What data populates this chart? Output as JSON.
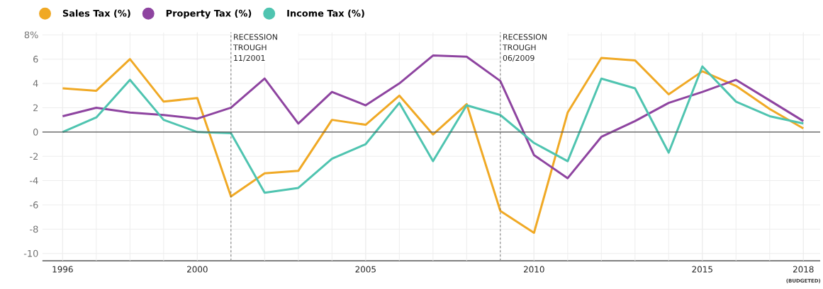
{
  "chart_data": {
    "type": "line",
    "x": [
      1996,
      1997,
      1998,
      1999,
      2000,
      2001,
      2002,
      2003,
      2004,
      2005,
      2006,
      2007,
      2008,
      2009,
      2010,
      2011,
      2012,
      2013,
      2014,
      2015,
      2016,
      2017,
      2018
    ],
    "series": [
      {
        "name": "Sales Tax (%)",
        "color": "#f0a925",
        "values": [
          3.6,
          3.4,
          6.0,
          2.5,
          2.8,
          -5.3,
          -3.4,
          -3.2,
          1.0,
          0.6,
          3.0,
          -0.2,
          2.3,
          -6.5,
          -8.3,
          1.6,
          6.1,
          5.9,
          3.1,
          5.0,
          3.8,
          1.9,
          0.3
        ]
      },
      {
        "name": "Property Tax (%)",
        "color": "#8e44a0",
        "values": [
          1.3,
          2.0,
          1.6,
          1.4,
          1.1,
          2.0,
          4.4,
          0.7,
          3.3,
          2.2,
          4.0,
          6.3,
          6.2,
          4.2,
          -1.9,
          -3.8,
          -0.4,
          0.9,
          2.4,
          3.3,
          4.3,
          2.6,
          0.9
        ]
      },
      {
        "name": "Income Tax (%)",
        "color": "#4fc4b0",
        "values": [
          0.0,
          1.2,
          4.3,
          1.0,
          0.0,
          -0.1,
          -5.0,
          -4.6,
          -2.2,
          -1.0,
          2.4,
          -2.4,
          2.2,
          1.4,
          -0.9,
          -2.4,
          4.4,
          3.6,
          -1.7,
          5.4,
          2.5,
          1.3,
          0.7
        ]
      }
    ],
    "xlim": [
      1995.4,
      2018.5
    ],
    "ylim": [
      -10.6,
      8.2
    ],
    "xticks": [
      1996,
      2000,
      2005,
      2010,
      2015,
      2018
    ],
    "yticks": [
      -10,
      -8,
      -6,
      -4,
      -2,
      0,
      2,
      4,
      6,
      {
        "value": 8,
        "label": "8%"
      }
    ],
    "ref_lines": [
      {
        "axis": "y",
        "value": 0,
        "color": "#555555",
        "line_style": "solid"
      },
      {
        "axis": "x",
        "value": 2001,
        "label": "RECESSION TROUGH 11/2001",
        "color": "#555555",
        "line_style": "dashed"
      },
      {
        "axis": "x",
        "value": 2009,
        "label": "RECESSION TROUGH 06/2009",
        "color": "#555555",
        "line_style": "dashed"
      }
    ],
    "annotations": [
      "(BUDGETED)"
    ],
    "grid": true,
    "legend": "top left",
    "marker": "none",
    "line_style": "solid"
  }
}
